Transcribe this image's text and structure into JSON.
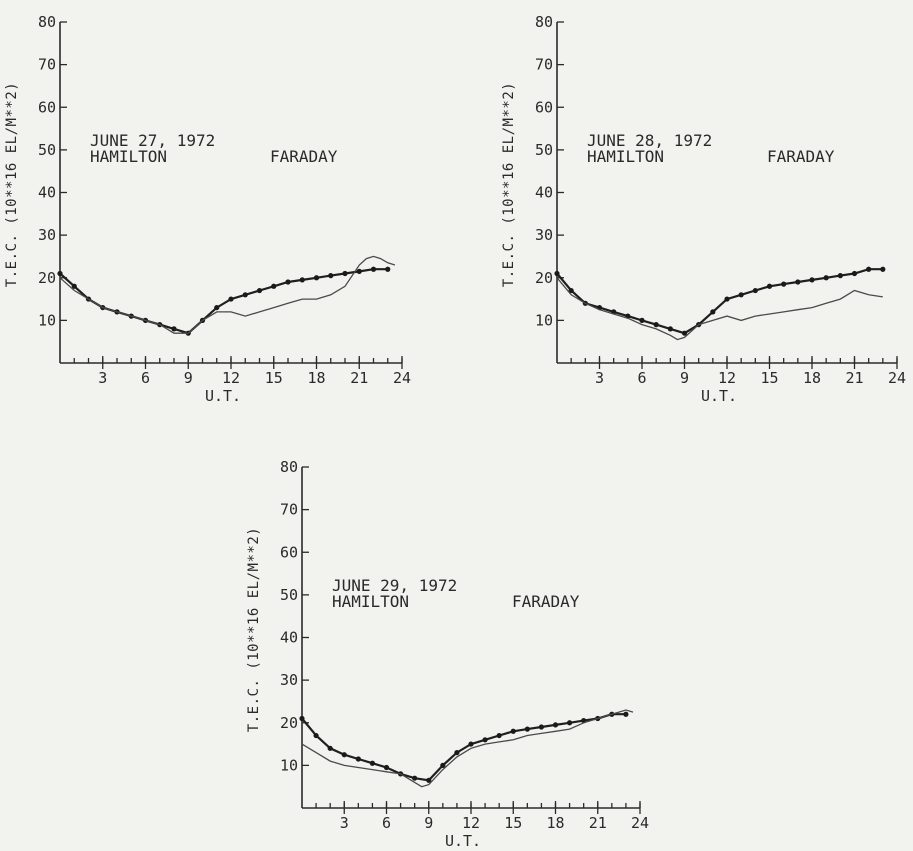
{
  "chart_data": [
    {
      "type": "line",
      "annotation": [
        "JUNE 27, 1972",
        "HAMILTON",
        "FARADAY"
      ],
      "ylabel": "T.E.C. (10**16 EL/M**2)",
      "xlabel": "U.T.",
      "xlim": [
        0,
        24
      ],
      "ylim": [
        0,
        80
      ],
      "xticks": [
        3,
        6,
        9,
        12,
        15,
        18,
        21,
        24
      ],
      "yticks": [
        10,
        20,
        30,
        40,
        50,
        60,
        70,
        80
      ],
      "series": [
        {
          "style": "line-with-dots",
          "x": [
            0,
            1,
            2,
            3,
            4,
            5,
            6,
            7,
            8,
            9,
            10,
            11,
            12,
            13,
            14,
            15,
            16,
            17,
            18,
            19,
            20,
            21,
            22,
            23
          ],
          "y": [
            21,
            18,
            15,
            13,
            12,
            11,
            10,
            9,
            8,
            7,
            10,
            13,
            15,
            16,
            17,
            18,
            19,
            19.5,
            20,
            20.5,
            21,
            21.5,
            22,
            22
          ]
        },
        {
          "style": "line",
          "x": [
            0,
            1,
            2,
            3,
            4,
            5,
            6,
            7,
            8,
            9,
            10,
            11,
            12,
            13,
            14,
            15,
            16,
            17,
            18,
            19,
            20,
            21,
            21.5,
            22,
            22.5,
            23,
            23.5
          ],
          "y": [
            20,
            17,
            15,
            13,
            12,
            11,
            10,
            9,
            7,
            7,
            10,
            12,
            12,
            11,
            12,
            13,
            14,
            15,
            15,
            16,
            18,
            23,
            24.5,
            25,
            24.5,
            23.5,
            23
          ]
        }
      ]
    },
    {
      "type": "line",
      "annotation": [
        "JUNE 28, 1972",
        "HAMILTON",
        "FARADAY"
      ],
      "ylabel": "T.E.C. (10**16 EL/M**2)",
      "xlabel": "U.T.",
      "xlim": [
        0,
        24
      ],
      "ylim": [
        0,
        80
      ],
      "xticks": [
        3,
        6,
        9,
        12,
        15,
        18,
        21,
        24
      ],
      "yticks": [
        10,
        20,
        30,
        40,
        50,
        60,
        70,
        80
      ],
      "series": [
        {
          "style": "line-with-dots",
          "x": [
            0,
            1,
            2,
            3,
            4,
            5,
            6,
            7,
            8,
            9,
            10,
            11,
            12,
            13,
            14,
            15,
            16,
            17,
            18,
            19,
            20,
            21,
            22,
            23
          ],
          "y": [
            21,
            17,
            14,
            13,
            12,
            11,
            10,
            9,
            8,
            7,
            9,
            12,
            15,
            16,
            17,
            18,
            18.5,
            19,
            19.5,
            20,
            20.5,
            21,
            22,
            22
          ]
        },
        {
          "style": "line",
          "x": [
            0,
            1,
            2,
            3,
            4,
            5,
            6,
            7,
            8,
            8.5,
            9,
            10,
            11,
            12,
            13,
            14,
            15,
            16,
            17,
            18,
            19,
            20,
            21,
            22,
            23
          ],
          "y": [
            20,
            16,
            14,
            12.5,
            11.5,
            10.5,
            9,
            8,
            6.5,
            5.5,
            6,
            9,
            10,
            11,
            10,
            11,
            11.5,
            12,
            12.5,
            13,
            14,
            15,
            17,
            16,
            15.5
          ]
        }
      ]
    },
    {
      "type": "line",
      "annotation": [
        "JUNE 29, 1972",
        "HAMILTON",
        "FARADAY"
      ],
      "ylabel": "T.E.C. (10**16 EL/M**2)",
      "xlabel": "U.T.",
      "xlim": [
        0,
        24
      ],
      "ylim": [
        0,
        80
      ],
      "xticks": [
        3,
        6,
        9,
        12,
        15,
        18,
        21,
        24
      ],
      "yticks": [
        10,
        20,
        30,
        40,
        50,
        60,
        70,
        80
      ],
      "series": [
        {
          "style": "line-with-dots",
          "x": [
            0,
            1,
            2,
            3,
            4,
            5,
            6,
            7,
            8,
            9,
            10,
            11,
            12,
            13,
            14,
            15,
            16,
            17,
            18,
            19,
            20,
            21,
            22,
            23
          ],
          "y": [
            21,
            17,
            14,
            12.5,
            11.5,
            10.5,
            9.5,
            8,
            7,
            6.5,
            10,
            13,
            15,
            16,
            17,
            18,
            18.5,
            19,
            19.5,
            20,
            20.5,
            21,
            22,
            22
          ]
        },
        {
          "style": "line",
          "x": [
            0,
            1,
            2,
            3,
            4,
            5,
            6,
            7,
            8,
            8.5,
            9,
            10,
            11,
            12,
            13,
            14,
            15,
            16,
            17,
            18,
            19,
            20,
            21,
            22,
            23,
            23.5
          ],
          "y": [
            15,
            13,
            11,
            10,
            9.5,
            9,
            8.5,
            8,
            6,
            5,
            5.5,
            9,
            12,
            14,
            15,
            15.5,
            16,
            17,
            17.5,
            18,
            18.5,
            20,
            21,
            22,
            23,
            22.5
          ]
        }
      ]
    }
  ]
}
